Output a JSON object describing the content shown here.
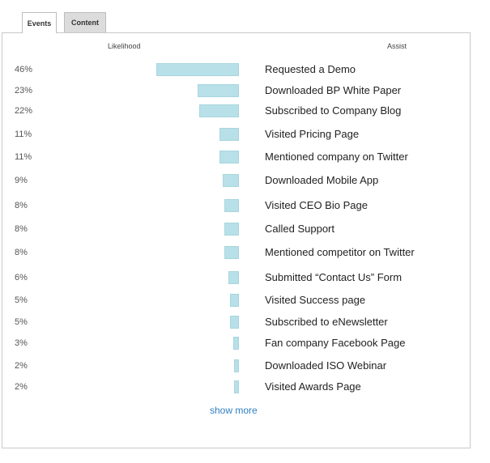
{
  "tabs": {
    "events": "Events",
    "content": "Content"
  },
  "headers": {
    "likelihood": "Likelihood",
    "assist": "Assist"
  },
  "rows": [
    {
      "pct": "46%",
      "value": 46,
      "label": "Requested a Demo"
    },
    {
      "pct": "23%",
      "value": 23,
      "label": "Downloaded BP White Paper"
    },
    {
      "pct": "22%",
      "value": 22,
      "label": "Subscribed to Company Blog"
    },
    {
      "pct": "11%",
      "value": 11,
      "label": "Visited Pricing Page"
    },
    {
      "pct": "11%",
      "value": 11,
      "label": "Mentioned company on Twitter"
    },
    {
      "pct": "9%",
      "value": 9,
      "label": "Downloaded Mobile App"
    },
    {
      "pct": "8%",
      "value": 8,
      "label": "Visited CEO Bio Page"
    },
    {
      "pct": "8%",
      "value": 8,
      "label": "Called Support"
    },
    {
      "pct": "8%",
      "value": 8,
      "label": "Mentioned competitor on Twitter"
    },
    {
      "pct": "6%",
      "value": 6,
      "label": "Submitted “Contact Us” Form"
    },
    {
      "pct": "5%",
      "value": 5,
      "label": "Visited Success page"
    },
    {
      "pct": "5%",
      "value": 5,
      "label": "Subscribed to eNewsletter"
    },
    {
      "pct": "3%",
      "value": 3,
      "label": "Fan company Facebook Page"
    },
    {
      "pct": "2%",
      "value": 2,
      "label": "Downloaded ISO Webinar"
    },
    {
      "pct": "2%",
      "value": 2,
      "label": "Visited Awards Page"
    }
  ],
  "show_more": "show more",
  "colors": {
    "bar": "#b7e0e8",
    "link": "#2f7fbf"
  }
}
